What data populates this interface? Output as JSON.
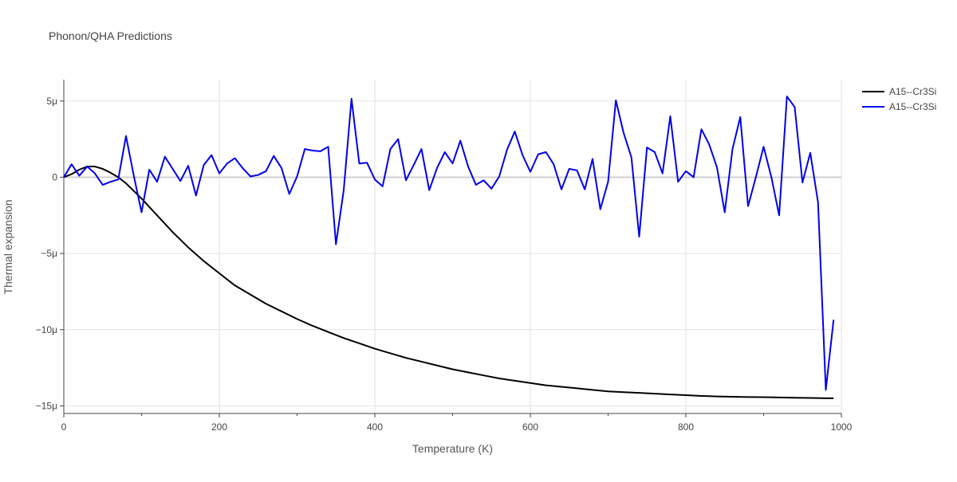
{
  "chart_data": {
    "type": "line",
    "title": "Phonon/QHA Predictions",
    "xlabel": "Temperature (K)",
    "ylabel": "Thermal expansion",
    "xlim": [
      0,
      1000
    ],
    "ylim": [
      -15.5,
      6.4
    ],
    "x_ticks": [
      0,
      200,
      400,
      600,
      800,
      1000
    ],
    "x_tick_labels": [
      "0",
      "200",
      "400",
      "600",
      "800",
      "1000"
    ],
    "y_ticks": [
      -15,
      -10,
      -5,
      0,
      5
    ],
    "y_tick_labels": [
      "−15μ",
      "−10μ",
      "−5μ",
      "0",
      "5μ"
    ],
    "grid": true,
    "legend_position": "top-right",
    "series": [
      {
        "name": "A15--Cr3Si",
        "color": "#000000",
        "x": [
          0,
          10,
          20,
          30,
          40,
          50,
          60,
          70,
          80,
          90,
          100,
          120,
          140,
          160,
          180,
          200,
          220,
          240,
          260,
          280,
          300,
          320,
          340,
          360,
          380,
          400,
          420,
          440,
          460,
          480,
          500,
          520,
          540,
          560,
          580,
          600,
          620,
          640,
          660,
          680,
          700,
          720,
          740,
          760,
          780,
          800,
          820,
          840,
          860,
          880,
          900,
          920,
          940,
          960,
          980,
          990
        ],
        "y": [
          0,
          0.2,
          0.5,
          0.7,
          0.7,
          0.55,
          0.3,
          0.0,
          -0.4,
          -0.9,
          -1.4,
          -2.5,
          -3.6,
          -4.6,
          -5.5,
          -6.3,
          -7.1,
          -7.7,
          -8.3,
          -8.8,
          -9.3,
          -9.75,
          -10.15,
          -10.55,
          -10.9,
          -11.25,
          -11.55,
          -11.85,
          -12.1,
          -12.35,
          -12.6,
          -12.8,
          -13.0,
          -13.2,
          -13.35,
          -13.5,
          -13.65,
          -13.75,
          -13.85,
          -13.95,
          -14.05,
          -14.1,
          -14.15,
          -14.2,
          -14.25,
          -14.3,
          -14.35,
          -14.38,
          -14.4,
          -14.42,
          -14.43,
          -14.45,
          -14.47,
          -14.48,
          -14.5,
          -14.5
        ]
      },
      {
        "name": "A15--Cr3Si",
        "color": "#0000ee",
        "x": [
          0,
          10,
          20,
          30,
          40,
          50,
          60,
          70,
          80,
          90,
          100,
          110,
          120,
          130,
          140,
          150,
          160,
          170,
          180,
          190,
          200,
          210,
          220,
          230,
          240,
          250,
          260,
          270,
          280,
          290,
          300,
          310,
          320,
          330,
          340,
          350,
          360,
          370,
          380,
          390,
          400,
          410,
          420,
          430,
          440,
          450,
          460,
          470,
          480,
          490,
          500,
          510,
          520,
          530,
          540,
          550,
          560,
          570,
          580,
          590,
          600,
          610,
          620,
          630,
          640,
          650,
          660,
          670,
          680,
          690,
          700,
          710,
          720,
          730,
          740,
          750,
          760,
          770,
          780,
          790,
          800,
          810,
          820,
          830,
          840,
          850,
          860,
          870,
          880,
          890,
          900,
          910,
          920,
          930,
          940,
          950,
          960,
          970,
          980,
          990
        ],
        "y": [
          0,
          0.85,
          0.1,
          0.7,
          0.25,
          -0.5,
          -0.3,
          -0.15,
          2.7,
          0.1,
          -2.3,
          0.5,
          -0.3,
          1.35,
          0.55,
          -0.25,
          0.75,
          -1.2,
          0.8,
          1.45,
          0.25,
          0.9,
          1.25,
          0.6,
          0.05,
          0.15,
          0.4,
          1.4,
          0.6,
          -1.1,
          0.05,
          1.85,
          1.75,
          1.7,
          2.0,
          -4.4,
          -0.85,
          5.15,
          0.9,
          0.95,
          -0.15,
          -0.6,
          1.85,
          2.5,
          -0.2,
          0.8,
          1.85,
          -0.85,
          0.6,
          1.65,
          0.9,
          2.4,
          0.7,
          -0.5,
          -0.2,
          -0.75,
          0.05,
          1.8,
          3.0,
          1.45,
          0.35,
          1.5,
          1.65,
          0.85,
          -0.8,
          0.55,
          0.45,
          -0.8,
          1.2,
          -2.1,
          -0.3,
          5.05,
          2.9,
          1.3,
          -3.9,
          1.95,
          1.65,
          0.25,
          4.0,
          -0.3,
          0.4,
          0.0,
          3.15,
          2.15,
          0.65,
          -2.3,
          1.85,
          3.95,
          -1.9,
          0.0,
          2.0,
          0.0,
          -2.5,
          5.3,
          4.6,
          -0.35,
          1.6,
          -1.65,
          -13.95,
          -9.35
        ]
      }
    ]
  }
}
